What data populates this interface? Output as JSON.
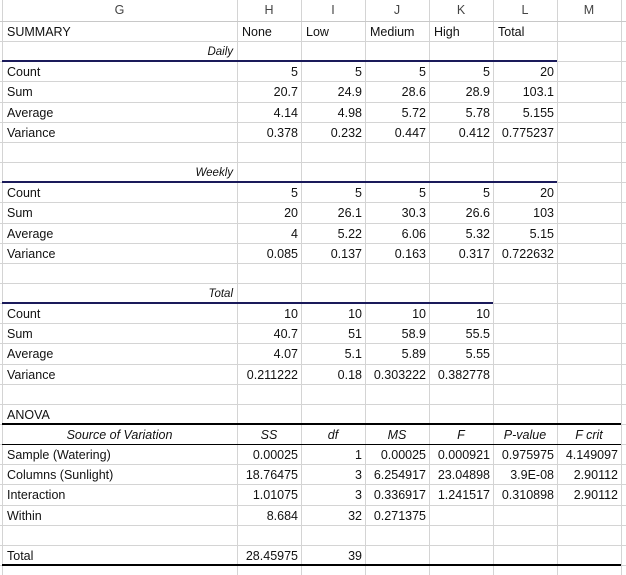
{
  "columns": [
    "G",
    "H",
    "I",
    "J",
    "K",
    "L",
    "M"
  ],
  "summary": {
    "title": "SUMMARY",
    "headers": [
      "None",
      "Low",
      "Medium",
      "High",
      "Total"
    ],
    "sections": [
      {
        "label": "Daily",
        "rows": [
          {
            "stat": "Count",
            "values": [
              "5",
              "5",
              "5",
              "5",
              "20"
            ]
          },
          {
            "stat": "Sum",
            "values": [
              "20.7",
              "24.9",
              "28.6",
              "28.9",
              "103.1"
            ]
          },
          {
            "stat": "Average",
            "values": [
              "4.14",
              "4.98",
              "5.72",
              "5.78",
              "5.155"
            ]
          },
          {
            "stat": "Variance",
            "values": [
              "0.378",
              "0.232",
              "0.447",
              "0.412",
              "0.775237"
            ]
          }
        ]
      },
      {
        "label": "Weekly",
        "rows": [
          {
            "stat": "Count",
            "values": [
              "5",
              "5",
              "5",
              "5",
              "20"
            ]
          },
          {
            "stat": "Sum",
            "values": [
              "20",
              "26.1",
              "30.3",
              "26.6",
              "103"
            ]
          },
          {
            "stat": "Average",
            "values": [
              "4",
              "5.22",
              "6.06",
              "5.32",
              "5.15"
            ]
          },
          {
            "stat": "Variance",
            "values": [
              "0.085",
              "0.137",
              "0.163",
              "0.317",
              "0.722632"
            ]
          }
        ]
      },
      {
        "label": "Total",
        "rows": [
          {
            "stat": "Count",
            "values": [
              "10",
              "10",
              "10",
              "10"
            ]
          },
          {
            "stat": "Sum",
            "values": [
              "40.7",
              "51",
              "58.9",
              "55.5"
            ]
          },
          {
            "stat": "Average",
            "values": [
              "4.07",
              "5.1",
              "5.89",
              "5.55"
            ]
          },
          {
            "stat": "Variance",
            "values": [
              "0.211222",
              "0.18",
              "0.303222",
              "0.382778"
            ]
          }
        ]
      }
    ]
  },
  "anova": {
    "title": "ANOVA",
    "headers": [
      "Source of Variation",
      "SS",
      "df",
      "MS",
      "F",
      "P-value",
      "F crit"
    ],
    "rows": [
      [
        "Sample (Watering)",
        "0.00025",
        "1",
        "0.00025",
        "0.000921",
        "0.975975",
        "4.149097"
      ],
      [
        "Columns (Sunlight)",
        "18.76475",
        "3",
        "6.254917",
        "23.04898",
        "3.9E-08",
        "2.90112"
      ],
      [
        "Interaction",
        "1.01075",
        "3",
        "0.336917",
        "1.241517",
        "0.310898",
        "2.90112"
      ],
      [
        "Within",
        "8.684",
        "32",
        "0.271375",
        "",
        "",
        ""
      ]
    ],
    "total": [
      "Total",
      "28.45975",
      "39",
      "",
      "",
      "",
      ""
    ]
  },
  "colors": {
    "summary_rule": "#1a1a5a",
    "anova_rule": "#000000",
    "gridline": "#d4d4d4"
  }
}
